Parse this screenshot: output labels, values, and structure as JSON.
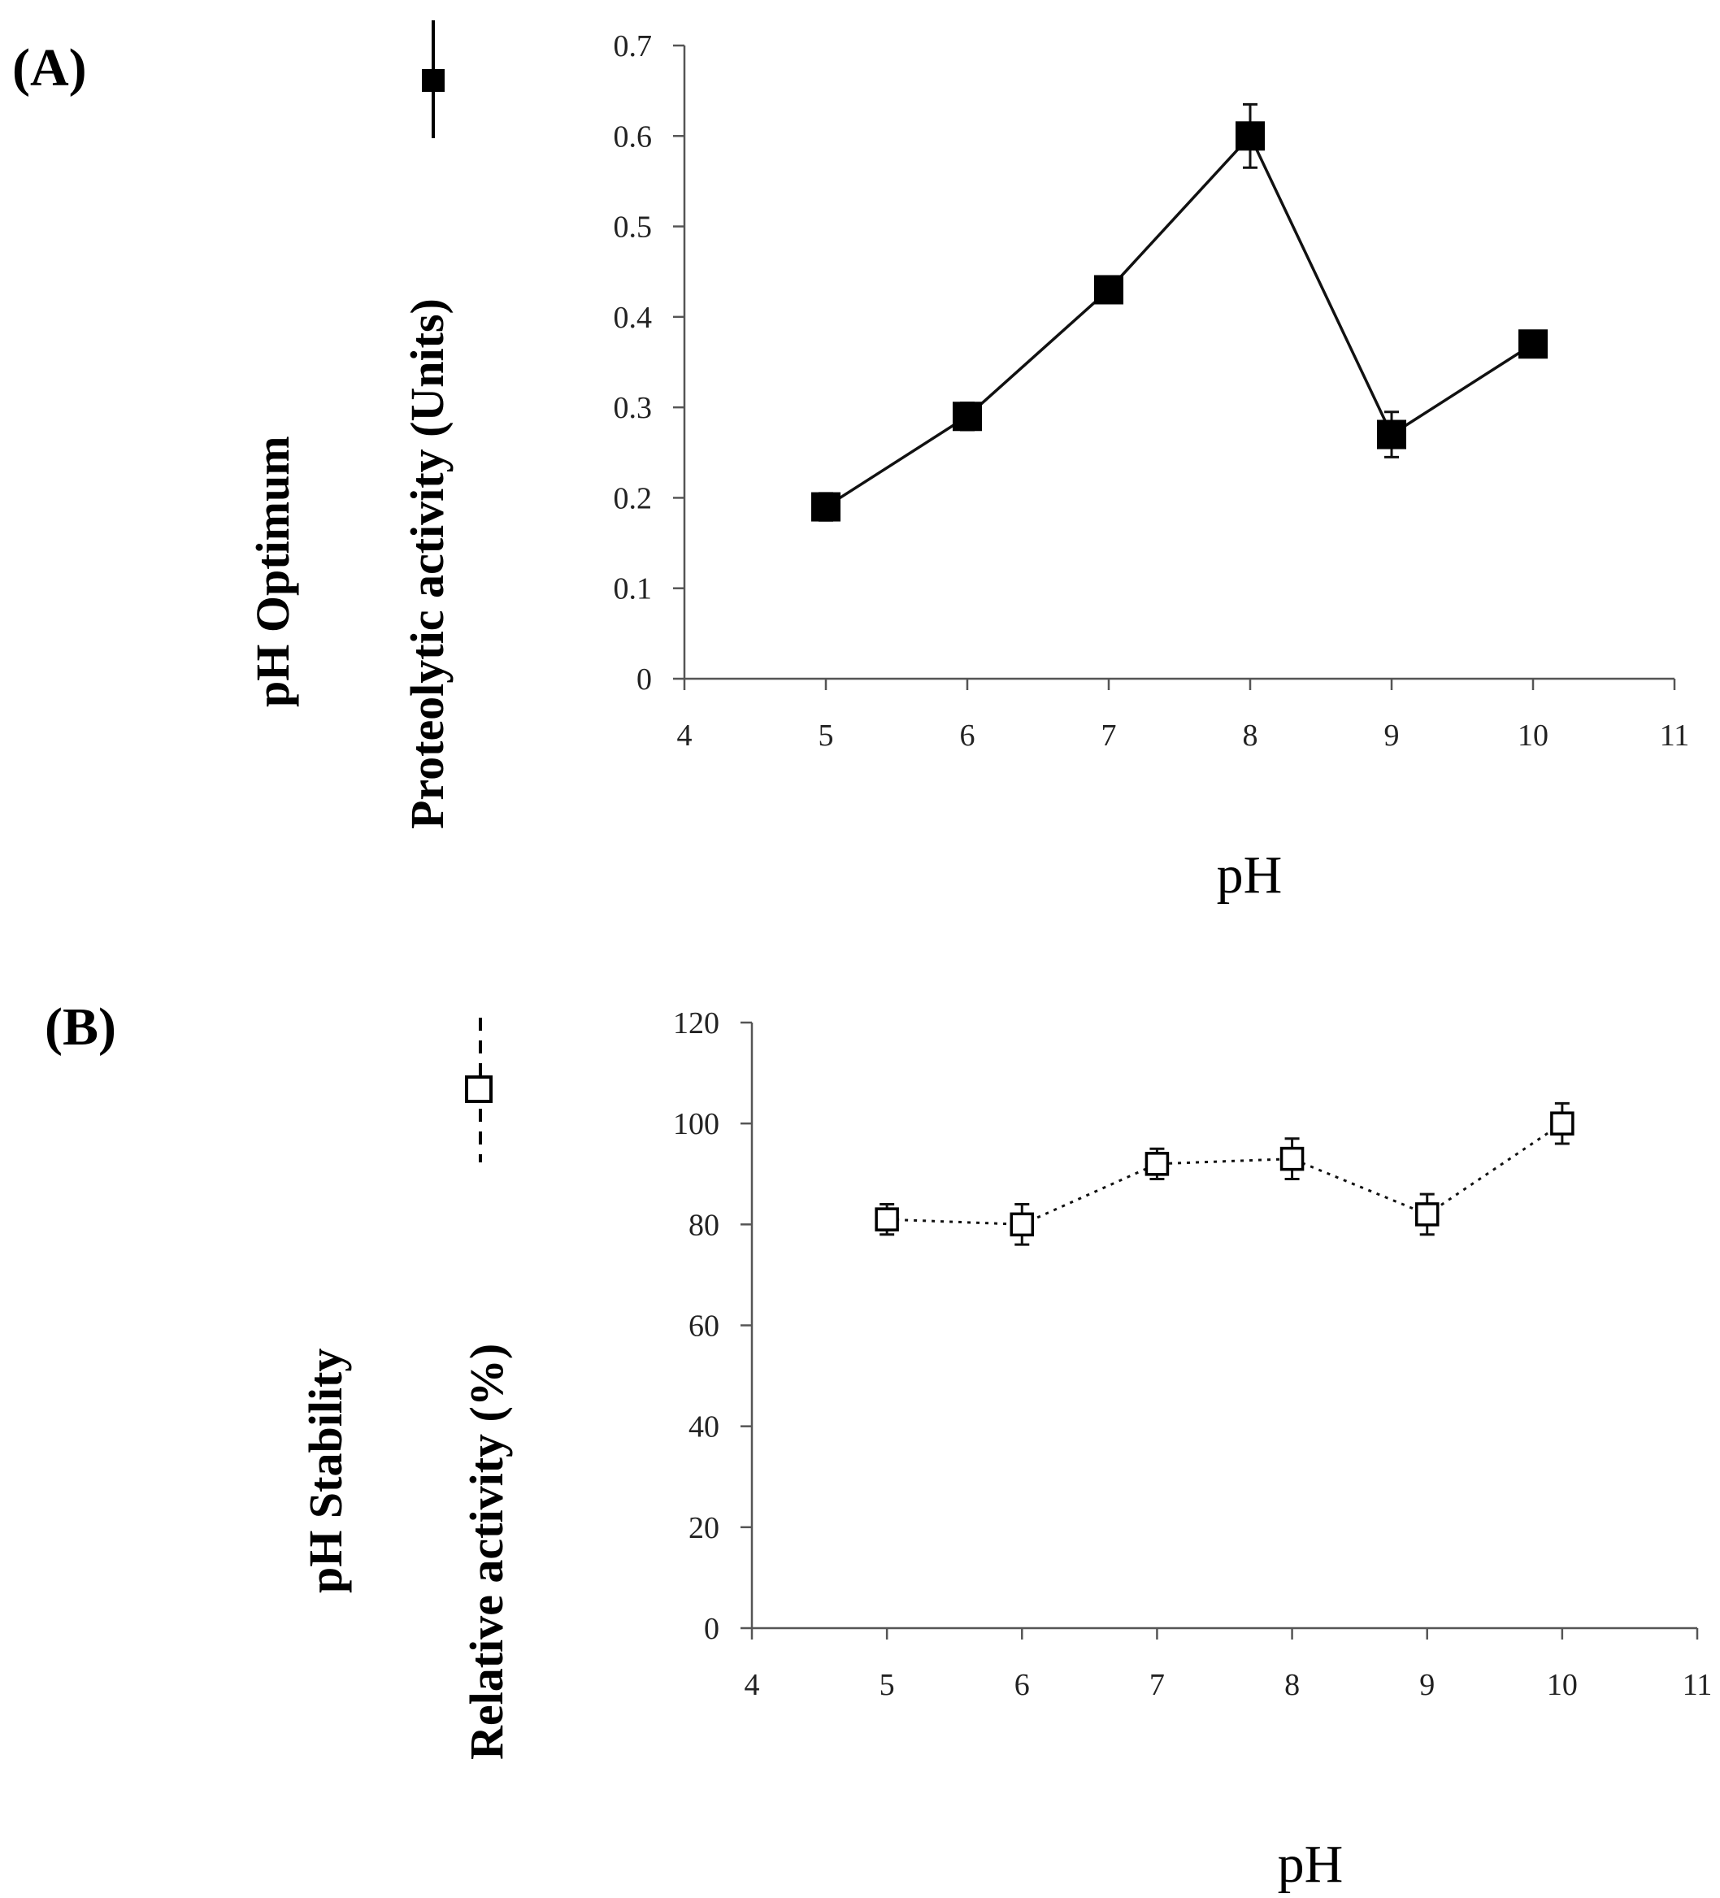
{
  "chart_data": [
    {
      "type": "line",
      "panel_label": "(A)",
      "side_label": "pH Optimum",
      "title": "",
      "xlabel": "pH",
      "ylabel": "Proteolytic activity (Units)",
      "xlim": [
        4,
        11
      ],
      "ylim": [
        0,
        0.7
      ],
      "x_ticks": [
        "4",
        "5",
        "6",
        "7",
        "8",
        "9",
        "10",
        "11"
      ],
      "y_ticks": [
        "0",
        "0.1",
        "0.2",
        "0.3",
        "0.4",
        "0.5",
        "0.6",
        "0.7"
      ],
      "grid": false,
      "legend": "top-left, vertical solid line with filled square",
      "series": [
        {
          "name": "pH Optimum",
          "marker": "filled-square",
          "line": "solid",
          "x": [
            5,
            6,
            7,
            8,
            9,
            10
          ],
          "values": [
            0.19,
            0.29,
            0.43,
            0.6,
            0.27,
            0.37
          ],
          "errors": [
            0.015,
            0.015,
            0.01,
            0.035,
            0.025,
            0.01
          ]
        }
      ]
    },
    {
      "type": "line",
      "panel_label": "(B)",
      "side_label": "pH Stability",
      "title": "",
      "xlabel": "pH",
      "ylabel": "Relative activity (%)",
      "xlim": [
        4,
        11
      ],
      "ylim": [
        0,
        120
      ],
      "x_ticks": [
        "4",
        "5",
        "6",
        "7",
        "8",
        "9",
        "10",
        "11"
      ],
      "y_ticks": [
        "0",
        "20",
        "40",
        "60",
        "80",
        "100",
        "120"
      ],
      "grid": false,
      "legend": "top-left, vertical dashed line with open square",
      "series": [
        {
          "name": "pH Stability",
          "marker": "open-square",
          "line": "dotted",
          "x": [
            5,
            6,
            7,
            8,
            9,
            10
          ],
          "values": [
            81,
            80,
            92,
            93,
            82,
            100
          ],
          "errors": [
            3,
            4,
            3,
            4,
            4,
            4
          ]
        }
      ]
    }
  ]
}
